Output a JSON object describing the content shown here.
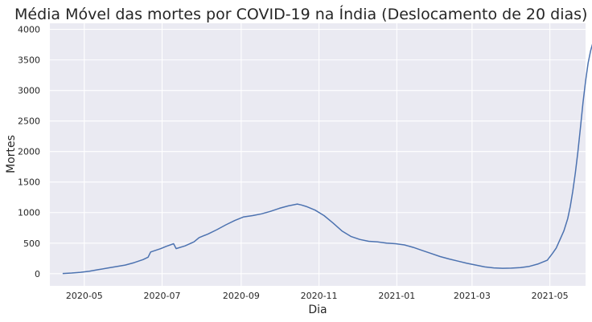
{
  "chart_data": {
    "type": "line",
    "title": "Média Móvel das mortes por COVID-19 na Índia (Deslocamento de 20 dias)",
    "xlabel": "Dia",
    "ylabel": "Mortes",
    "xlim": [
      "2020-04-04",
      "2021-05-29"
    ],
    "ylim": [
      -200,
      4100
    ],
    "grid": true,
    "colors": {
      "background": "#eaeaf2",
      "grid": "#ffffff",
      "line": "#4c72b0"
    },
    "x_ticks": [
      "2020-05",
      "2020-07",
      "2020-09",
      "2020-11",
      "2021-01",
      "2021-03",
      "2021-05"
    ],
    "y_ticks": [
      0,
      500,
      1000,
      1500,
      2000,
      2500,
      3000,
      3500,
      4000
    ],
    "series": [
      {
        "points": [
          [
            "2020-04-14",
            2
          ],
          [
            "2020-04-21",
            10
          ],
          [
            "2020-04-28",
            22
          ],
          [
            "2020-05-05",
            40
          ],
          [
            "2020-05-12",
            65
          ],
          [
            "2020-05-19",
            90
          ],
          [
            "2020-05-26",
            115
          ],
          [
            "2020-06-02",
            140
          ],
          [
            "2020-06-09",
            180
          ],
          [
            "2020-06-16",
            230
          ],
          [
            "2020-06-20",
            270
          ],
          [
            "2020-06-22",
            355
          ],
          [
            "2020-06-30",
            410
          ],
          [
            "2020-07-04",
            445
          ],
          [
            "2020-07-10",
            490
          ],
          [
            "2020-07-12",
            410
          ],
          [
            "2020-07-19",
            455
          ],
          [
            "2020-07-26",
            520
          ],
          [
            "2020-07-30",
            590
          ],
          [
            "2020-08-06",
            650
          ],
          [
            "2020-08-13",
            720
          ],
          [
            "2020-08-20",
            800
          ],
          [
            "2020-08-27",
            870
          ],
          [
            "2020-09-03",
            930
          ],
          [
            "2020-09-10",
            950
          ],
          [
            "2020-09-17",
            980
          ],
          [
            "2020-09-24",
            1020
          ],
          [
            "2020-10-01",
            1070
          ],
          [
            "2020-10-08",
            1110
          ],
          [
            "2020-10-15",
            1140
          ],
          [
            "2020-10-18",
            1125
          ],
          [
            "2020-10-22",
            1100
          ],
          [
            "2020-10-29",
            1040
          ],
          [
            "2020-11-05",
            950
          ],
          [
            "2020-11-12",
            830
          ],
          [
            "2020-11-19",
            700
          ],
          [
            "2020-11-26",
            610
          ],
          [
            "2020-12-03",
            560
          ],
          [
            "2020-12-10",
            530
          ],
          [
            "2020-12-17",
            520
          ],
          [
            "2020-12-24",
            500
          ],
          [
            "2020-12-31",
            490
          ],
          [
            "2021-01-07",
            470
          ],
          [
            "2021-01-14",
            430
          ],
          [
            "2021-01-21",
            380
          ],
          [
            "2021-01-28",
            330
          ],
          [
            "2021-02-04",
            280
          ],
          [
            "2021-02-11",
            240
          ],
          [
            "2021-02-18",
            205
          ],
          [
            "2021-02-25",
            170
          ],
          [
            "2021-03-04",
            140
          ],
          [
            "2021-03-11",
            110
          ],
          [
            "2021-03-18",
            95
          ],
          [
            "2021-03-25",
            88
          ],
          [
            "2021-04-01",
            90
          ],
          [
            "2021-04-08",
            100
          ],
          [
            "2021-04-15",
            120
          ],
          [
            "2021-04-22",
            160
          ],
          [
            "2021-04-29",
            220
          ],
          [
            "2021-05-03",
            330
          ],
          [
            "2021-05-06",
            420
          ],
          [
            "2021-05-09",
            560
          ],
          [
            "2021-05-12",
            700
          ],
          [
            "2021-05-15",
            900
          ],
          [
            "2021-05-17",
            1100
          ],
          [
            "2021-05-19",
            1350
          ],
          [
            "2021-05-21",
            1650
          ],
          [
            "2021-05-23",
            2000
          ],
          [
            "2021-05-25",
            2400
          ],
          [
            "2021-05-27",
            2800
          ],
          [
            "2021-05-29",
            3150
          ],
          [
            "2021-05-31",
            3450
          ],
          [
            "2021-06-02",
            3650
          ],
          [
            "2021-06-04",
            3800
          ],
          [
            "2021-06-06",
            3920
          ]
        ]
      }
    ]
  }
}
